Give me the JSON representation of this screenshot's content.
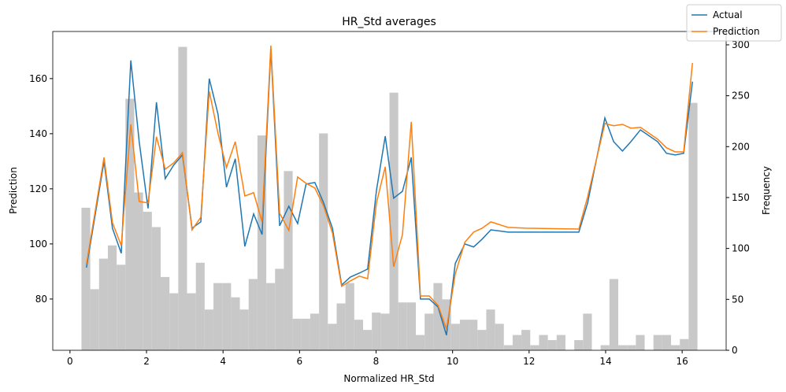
{
  "chart_data": {
    "type": "line",
    "title": "HR_Std averages",
    "x_label": "Normalized HR_Std",
    "y_label": "Prediction",
    "y2_label": "Frequency",
    "x": [
      0.43,
      0.89,
      1.11,
      1.34,
      1.59,
      1.81,
      2.04,
      2.26,
      2.49,
      2.71,
      2.94,
      3.19,
      3.42,
      3.64,
      3.87,
      4.09,
      4.32,
      4.57,
      4.8,
      5.02,
      5.25,
      5.48,
      5.72,
      5.95,
      6.17,
      6.4,
      6.63,
      6.86,
      7.1,
      7.33,
      7.56,
      7.78,
      8.01,
      8.24,
      8.46,
      8.69,
      8.92,
      9.16,
      9.39,
      9.62,
      9.84,
      10.07,
      10.32,
      10.55,
      10.77,
      11.0,
      11.45,
      11.92,
      13.3,
      13.53,
      13.98,
      14.21,
      14.44,
      14.66,
      14.91,
      15.36,
      15.59,
      15.82,
      16.04,
      16.27
    ],
    "series": [
      {
        "name": "Actual",
        "color": "#1f77b4",
        "values": [
          91.4,
          130,
          105.7,
          96.6,
          166.6,
          137,
          112.9,
          151.4,
          123.7,
          128.6,
          132.3,
          105.7,
          108,
          160,
          147,
          120.6,
          130.9,
          99.1,
          110.9,
          103.4,
          170.9,
          106.6,
          113.7,
          107.4,
          121.7,
          122.3,
          114.9,
          105.7,
          85.1,
          88,
          89.4,
          90.9,
          119.4,
          139.1,
          116.6,
          119.1,
          131.4,
          80,
          80,
          77.1,
          66.9,
          92.9,
          100,
          98.9,
          101.7,
          105.1,
          104.3,
          104.3,
          104.3,
          114.9,
          145.7,
          137.1,
          133.7,
          137.1,
          141.4,
          137.1,
          132.9,
          132.3,
          132.9,
          158.9
        ]
      },
      {
        "name": "Prediction",
        "color": "#ff7f0e",
        "values": [
          92.6,
          131.4,
          107.7,
          99.4,
          143.4,
          115.4,
          114.9,
          138.9,
          127.1,
          129.4,
          133.1,
          105.1,
          109.7,
          155.4,
          140,
          127.7,
          137.1,
          117.4,
          118.6,
          108,
          172,
          111.1,
          104.9,
          124.3,
          122,
          120.3,
          113.7,
          104,
          84.6,
          86.6,
          88.3,
          87.4,
          114.9,
          128,
          91.7,
          103.4,
          144.3,
          81.1,
          81.1,
          77.7,
          69.1,
          89.1,
          100.6,
          104.3,
          105.7,
          108,
          106,
          105.7,
          105.4,
          117.1,
          143.7,
          142.9,
          143.4,
          142,
          142.3,
          138,
          134.9,
          133.4,
          133.4,
          165.7
        ]
      }
    ],
    "histogram": {
      "axis": "y2",
      "color": "#c8c8c8",
      "bins": [
        0.3,
        0.53,
        0.76,
        0.99,
        1.22,
        1.45,
        1.68,
        1.91,
        2.14,
        2.37,
        2.6,
        2.83,
        3.06,
        3.29,
        3.52,
        3.75,
        3.98,
        4.21,
        4.44,
        4.67,
        4.9,
        5.13,
        5.36,
        5.59,
        5.82,
        6.05,
        6.28,
        6.51,
        6.74,
        6.97,
        7.2,
        7.43,
        7.66,
        7.89,
        8.12,
        8.35,
        8.58,
        8.81,
        9.04,
        9.27,
        9.5,
        9.73,
        9.96,
        10.19,
        10.42,
        10.65,
        10.88,
        11.11,
        11.34,
        11.57,
        11.8,
        12.03,
        12.26,
        12.49,
        12.72,
        12.95,
        13.18,
        13.41,
        13.64,
        13.87,
        14.1,
        14.33,
        14.56,
        14.79,
        15.02,
        15.25,
        15.48,
        15.71,
        15.94,
        16.17,
        16.4
      ],
      "counts": [
        140,
        60,
        90,
        103,
        84,
        247,
        155,
        136,
        121,
        72,
        56,
        298,
        56,
        86,
        40,
        66,
        66,
        52,
        40,
        70,
        211,
        66,
        80,
        176,
        31,
        31,
        36,
        213,
        26,
        46,
        66,
        30,
        20,
        37,
        36,
        253,
        47,
        47,
        15,
        36,
        66,
        50,
        26,
        30,
        30,
        20,
        40,
        26,
        5,
        15,
        20,
        5,
        15,
        10,
        15,
        0,
        10,
        36,
        0,
        5,
        70,
        5,
        5,
        15,
        0,
        15,
        15,
        5,
        11,
        243
      ]
    },
    "xlim": [
      -0.45,
      17.15
    ],
    "ylim": [
      61.4,
      177.1
    ],
    "y2lim": [
      0,
      313.1
    ],
    "xticks": [
      0,
      2,
      4,
      6,
      8,
      10,
      12,
      14,
      16
    ],
    "yticks": [
      80,
      100,
      120,
      140,
      160
    ],
    "y2ticks": [
      0,
      50,
      100,
      150,
      200,
      250,
      300
    ],
    "legend": "upper right"
  }
}
